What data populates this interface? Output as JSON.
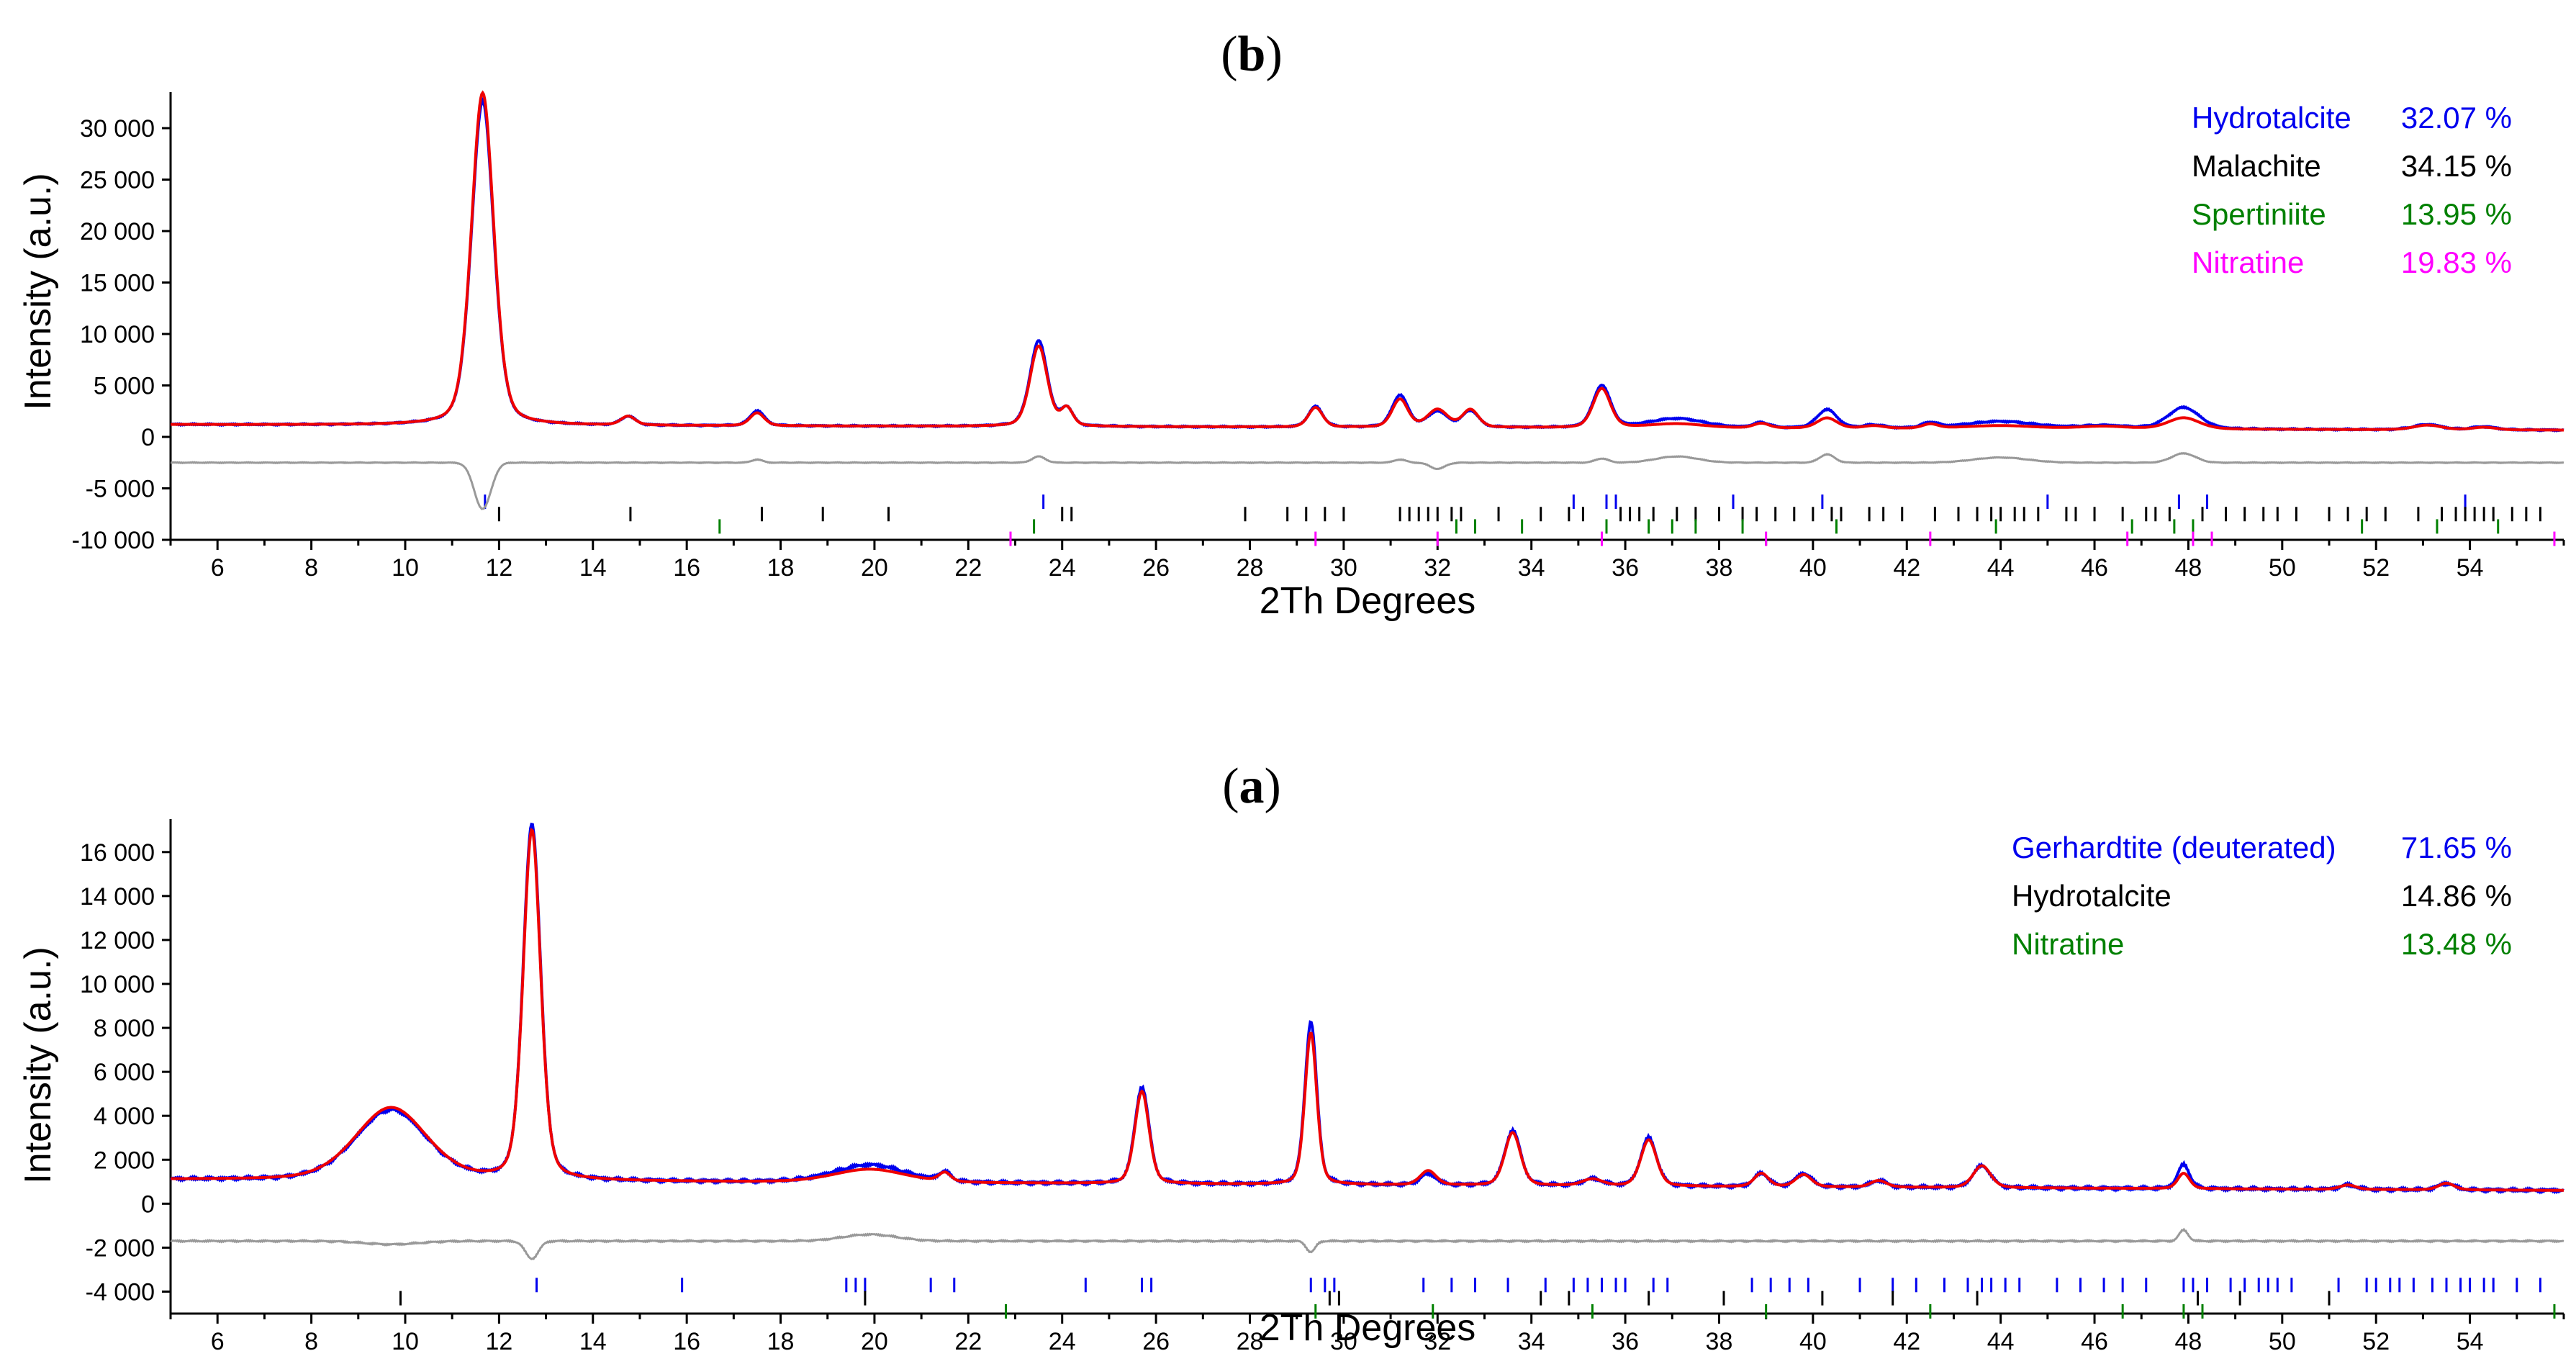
{
  "chart_data": [
    {
      "id": "b",
      "type": "line",
      "title": "b",
      "xlabel": "2Th Degrees",
      "ylabel": "Intensity (a.u.)",
      "xlim": [
        5,
        56
      ],
      "ylim": [
        -10000,
        33500
      ],
      "xticks": [
        6,
        8,
        10,
        12,
        14,
        16,
        18,
        20,
        22,
        24,
        26,
        28,
        30,
        32,
        34,
        36,
        38,
        40,
        42,
        44,
        46,
        48,
        50,
        52,
        54
      ],
      "yticks": [
        {
          "value": -10000,
          "label": "-10 000"
        },
        {
          "value": -5000,
          "label": "-5 000"
        },
        {
          "value": 0,
          "label": "0"
        },
        {
          "value": 5000,
          "label": "5 000"
        },
        {
          "value": 10000,
          "label": "10 000"
        },
        {
          "value": 15000,
          "label": "15 000"
        },
        {
          "value": 20000,
          "label": "20 000"
        },
        {
          "value": 25000,
          "label": "25 000"
        },
        {
          "value": 30000,
          "label": "30 000"
        }
      ],
      "baseline": 1200,
      "peaks": [
        {
          "x": 11.65,
          "obs": 31500,
          "calc": 32300,
          "w": 0.28,
          "diff": -4500
        },
        {
          "x": 14.75,
          "obs": 850,
          "calc": 850,
          "w": 0.18,
          "diff": 0
        },
        {
          "x": 17.5,
          "obs": 1450,
          "calc": 1250,
          "w": 0.18,
          "diff": 300
        },
        {
          "x": 23.5,
          "obs": 8300,
          "calc": 7800,
          "w": 0.22,
          "diff": 600
        },
        {
          "x": 24.1,
          "obs": 1700,
          "calc": 1700,
          "w": 0.15,
          "diff": 0
        },
        {
          "x": 29.4,
          "obs": 2000,
          "calc": 1900,
          "w": 0.18,
          "diff": 0
        },
        {
          "x": 31.2,
          "obs": 3100,
          "calc": 2700,
          "w": 0.2,
          "diff": 300
        },
        {
          "x": 32.0,
          "obs": 1500,
          "calc": 1700,
          "w": 0.25,
          "diff": -600
        },
        {
          "x": 32.7,
          "obs": 1600,
          "calc": 1700,
          "w": 0.2,
          "diff": 0
        },
        {
          "x": 35.5,
          "obs": 4100,
          "calc": 3800,
          "w": 0.22,
          "diff": 400
        },
        {
          "x": 37.1,
          "obs": 900,
          "calc": 400,
          "w": 0.7,
          "diff": 600
        },
        {
          "x": 38.9,
          "obs": 500,
          "calc": 450,
          "w": 0.2,
          "diff": 0
        },
        {
          "x": 40.3,
          "obs": 1800,
          "calc": 1000,
          "w": 0.25,
          "diff": 800
        },
        {
          "x": 41.3,
          "obs": 300,
          "calc": 250,
          "w": 0.25,
          "diff": 0
        },
        {
          "x": 42.5,
          "obs": 500,
          "calc": 400,
          "w": 0.2,
          "diff": 0
        },
        {
          "x": 44.0,
          "obs": 700,
          "calc": 300,
          "w": 0.9,
          "diff": 500
        },
        {
          "x": 46.2,
          "obs": 300,
          "calc": 250,
          "w": 0.6,
          "diff": 0
        },
        {
          "x": 47.9,
          "obs": 2100,
          "calc": 1100,
          "w": 0.4,
          "diff": 900
        },
        {
          "x": 53.1,
          "obs": 500,
          "calc": 450,
          "w": 0.35,
          "diff": 0
        },
        {
          "x": 54.3,
          "obs": 300,
          "calc": 250,
          "w": 0.3,
          "diff": 0
        }
      ],
      "diff_offset": -2500,
      "phases": [
        {
          "name": "Hydrotalcite",
          "percent": "32.07 %",
          "color": "#0000ee",
          "name_color": "#0000ee",
          "value_color": "#0000ee",
          "tick_y": -6300,
          "positions": [
            11.7,
            23.6,
            34.9,
            35.6,
            35.8,
            38.3,
            40.2,
            45.0,
            47.8,
            48.4,
            53.9
          ]
        },
        {
          "name": "Malachite",
          "percent": "34.15 %",
          "color": "#000000",
          "name_color": "#000000",
          "value_color": "#000000",
          "tick_y": -7500,
          "positions": [
            12.0,
            14.8,
            17.6,
            18.9,
            20.3,
            24.0,
            24.2,
            27.9,
            28.8,
            29.2,
            29.6,
            30.0,
            31.2,
            31.4,
            31.6,
            31.8,
            32.0,
            32.3,
            32.5,
            33.3,
            34.2,
            34.8,
            35.1,
            35.9,
            36.1,
            36.3,
            36.6,
            37.1,
            37.5,
            38.0,
            38.5,
            38.8,
            39.2,
            39.6,
            40.0,
            40.4,
            40.6,
            41.2,
            41.5,
            41.9,
            42.6,
            43.1,
            43.5,
            43.8,
            44.0,
            44.3,
            44.5,
            44.8,
            45.4,
            45.6,
            46.0,
            46.6,
            47.1,
            47.3,
            47.6,
            48.3,
            48.8,
            49.2,
            49.6,
            49.9,
            50.3,
            51.0,
            51.4,
            51.8,
            52.2,
            52.9,
            53.4,
            53.7,
            53.9,
            54.1,
            54.3,
            54.5,
            54.9,
            55.2,
            55.5
          ]
        },
        {
          "name": "Spertiniite",
          "percent": "13.95 %",
          "color": "#008000",
          "name_color": "#008000",
          "value_color": "#008000",
          "tick_y": -8700,
          "positions": [
            16.7,
            23.4,
            32.4,
            32.8,
            33.8,
            35.6,
            36.5,
            37.0,
            37.5,
            38.5,
            40.5,
            43.9,
            46.8,
            47.7,
            48.1,
            51.7,
            53.3,
            54.6
          ]
        },
        {
          "name": "Nitratine",
          "percent": "19.83 %",
          "color": "#ff00ff",
          "name_color": "#ff00ff",
          "value_color": "#ff00ff",
          "tick_y": -9900,
          "positions": [
            22.9,
            29.4,
            32.0,
            35.5,
            39.0,
            42.5,
            46.7,
            48.1,
            48.5,
            55.8
          ]
        }
      ]
    },
    {
      "id": "a",
      "type": "line",
      "title": "a",
      "xlabel": "2Th Degrees",
      "ylabel": "Intensity (a.u.)",
      "xlim": [
        5,
        56
      ],
      "ylim": [
        -5000,
        17500
      ],
      "xticks": [
        6,
        8,
        10,
        12,
        14,
        16,
        18,
        20,
        22,
        24,
        26,
        28,
        30,
        32,
        34,
        36,
        38,
        40,
        42,
        44,
        46,
        48,
        50,
        52,
        54
      ],
      "yticks": [
        {
          "value": -4000,
          "label": "-4 000"
        },
        {
          "value": -2000,
          "label": "-2 000"
        },
        {
          "value": 0,
          "label": "0"
        },
        {
          "value": 2000,
          "label": "2 000"
        },
        {
          "value": 4000,
          "label": "4 000"
        },
        {
          "value": 6000,
          "label": "6 000"
        },
        {
          "value": 8000,
          "label": "8 000"
        },
        {
          "value": 10000,
          "label": "10 000"
        },
        {
          "value": 12000,
          "label": "12 000"
        },
        {
          "value": 14000,
          "label": "14 000"
        },
        {
          "value": 16000,
          "label": "16 000"
        }
      ],
      "baseline": 1100,
      "peaks": [
        {
          "x": 9.7,
          "obs": 3200,
          "calc": 3300,
          "w": 0.9,
          "diff": -150
        },
        {
          "x": 12.7,
          "obs": 16200,
          "calc": 15900,
          "w": 0.22,
          "diff": -800
        },
        {
          "x": 19.9,
          "obs": 800,
          "calc": 600,
          "w": 0.9,
          "diff": 300
        },
        {
          "x": 21.5,
          "obs": 400,
          "calc": 400,
          "w": 0.15,
          "diff": 0
        },
        {
          "x": 25.7,
          "obs": 4400,
          "calc": 4200,
          "w": 0.18,
          "diff": 0
        },
        {
          "x": 29.3,
          "obs": 7400,
          "calc": 6900,
          "w": 0.15,
          "diff": -500
        },
        {
          "x": 31.8,
          "obs": 500,
          "calc": 650,
          "w": 0.2,
          "diff": 0
        },
        {
          "x": 33.6,
          "obs": 2500,
          "calc": 2400,
          "w": 0.2,
          "diff": 0
        },
        {
          "x": 35.3,
          "obs": 300,
          "calc": 300,
          "w": 0.25,
          "diff": 0
        },
        {
          "x": 36.5,
          "obs": 2200,
          "calc": 2100,
          "w": 0.2,
          "diff": 0
        },
        {
          "x": 38.9,
          "obs": 600,
          "calc": 600,
          "w": 0.18,
          "diff": 0
        },
        {
          "x": 39.8,
          "obs": 600,
          "calc": 550,
          "w": 0.2,
          "diff": 0
        },
        {
          "x": 41.4,
          "obs": 300,
          "calc": 300,
          "w": 0.2,
          "diff": 0
        },
        {
          "x": 43.6,
          "obs": 1000,
          "calc": 1000,
          "w": 0.22,
          "diff": 0
        },
        {
          "x": 47.9,
          "obs": 1100,
          "calc": 700,
          "w": 0.15,
          "diff": 500
        },
        {
          "x": 51.4,
          "obs": 200,
          "calc": 200,
          "w": 0.2,
          "diff": 0
        },
        {
          "x": 53.5,
          "obs": 300,
          "calc": 300,
          "w": 0.2,
          "diff": 0
        }
      ],
      "diff_offset": -1700,
      "phases": [
        {
          "name": "Gerhardtite (deuterated)",
          "percent": "71.65 %",
          "color": "#0000ee",
          "name_color": "#0000ee",
          "value_color": "#0000ee",
          "tick_y": -3700,
          "positions": [
            12.8,
            15.9,
            19.4,
            19.6,
            19.8,
            21.2,
            21.7,
            24.5,
            25.7,
            25.9,
            29.3,
            29.6,
            29.8,
            31.7,
            32.3,
            32.8,
            33.5,
            34.3,
            34.9,
            35.2,
            35.5,
            35.8,
            36.0,
            36.6,
            36.9,
            38.7,
            39.1,
            39.5,
            39.9,
            41.0,
            41.7,
            42.2,
            42.8,
            43.3,
            43.6,
            43.8,
            44.1,
            44.4,
            45.2,
            45.7,
            46.2,
            46.6,
            47.1,
            47.9,
            48.1,
            48.4,
            48.9,
            49.2,
            49.5,
            49.7,
            49.9,
            50.2,
            51.2,
            51.8,
            52.0,
            52.3,
            52.5,
            52.8,
            53.2,
            53.5,
            53.8,
            54.0,
            54.3,
            54.5,
            55.0,
            55.5
          ]
        },
        {
          "name": "Hydrotalcite",
          "percent": "14.86 %",
          "color": "#000000",
          "name_color": "#000000",
          "value_color": "#000000",
          "tick_y": -4300,
          "positions": [
            9.9,
            19.8,
            29.7,
            29.9,
            34.2,
            34.8,
            36.5,
            38.1,
            40.2,
            41.7,
            43.5,
            48.2,
            49.1,
            51.0
          ]
        },
        {
          "name": "Nitratine",
          "percent": "13.48 %",
          "color": "#008000",
          "name_color": "#008000",
          "value_color": "#008000",
          "tick_y": -4900,
          "positions": [
            22.8,
            29.4,
            31.9,
            35.3,
            39.0,
            42.5,
            46.6,
            47.9,
            48.3,
            55.8
          ]
        }
      ]
    }
  ]
}
